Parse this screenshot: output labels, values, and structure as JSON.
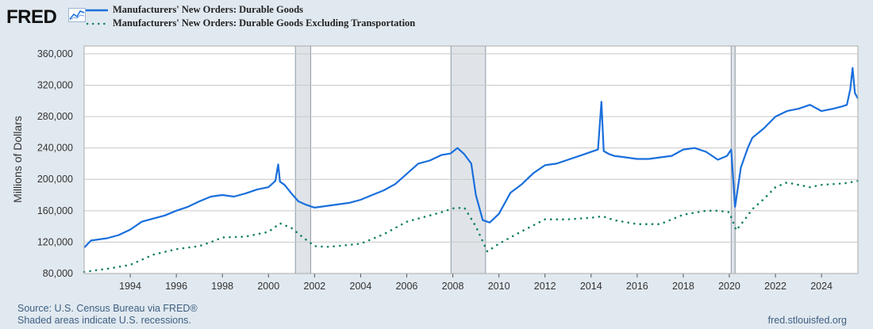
{
  "brand": {
    "logo_text": "FRED",
    "logo_icon": "chart-line-icon"
  },
  "colors": {
    "series1": "#1a6fdc",
    "series2": "#118066",
    "recession": "#e0e4e9",
    "grid": "#c8c8c8"
  },
  "footer": {
    "source": "Source: U.S. Census Bureau via FRED®",
    "note": "Shaded areas indicate U.S. recessions.",
    "url": "fred.stlouisfed.org"
  },
  "chart_data": {
    "type": "line",
    "title": "",
    "xlabel": "",
    "ylabel": "Millions of Dollars",
    "xlim": [
      1992.0,
      2025.58
    ],
    "ylim": [
      80000,
      370000
    ],
    "yticks": [
      80000,
      120000,
      160000,
      200000,
      240000,
      280000,
      320000,
      360000
    ],
    "ytick_labels": [
      "80,000",
      "120,000",
      "160,000",
      "200,000",
      "240,000",
      "280,000",
      "320,000",
      "360,000"
    ],
    "xticks": [
      1994,
      1996,
      1998,
      2000,
      2002,
      2004,
      2006,
      2008,
      2010,
      2012,
      2014,
      2016,
      2018,
      2020,
      2022,
      2024
    ],
    "xtick_labels": [
      "1994",
      "1996",
      "1998",
      "2000",
      "2002",
      "2004",
      "2006",
      "2008",
      "2010",
      "2012",
      "2014",
      "2016",
      "2018",
      "2020",
      "2022",
      "2024"
    ],
    "grid": true,
    "recessions": [
      [
        2001.17,
        2001.83
      ],
      [
        2007.92,
        2009.42
      ],
      [
        2020.08,
        2020.25
      ]
    ],
    "series": [
      {
        "name": "Manufacturers' New Orders: Durable Goods",
        "style": "solid",
        "x": [
          1992.0,
          1992.3,
          1993.0,
          1993.5,
          1994.0,
          1994.5,
          1995.0,
          1995.5,
          1996.0,
          1996.5,
          1997.0,
          1997.5,
          1998.0,
          1998.5,
          1999.0,
          1999.5,
          2000.0,
          2000.3,
          2000.42,
          2000.5,
          2000.7,
          2001.0,
          2001.3,
          2001.6,
          2002.0,
          2002.5,
          2003.0,
          2003.5,
          2004.0,
          2004.5,
          2005.0,
          2005.5,
          2006.0,
          2006.5,
          2007.0,
          2007.5,
          2007.9,
          2008.2,
          2008.5,
          2008.8,
          2009.0,
          2009.3,
          2009.6,
          2010.0,
          2010.5,
          2011.0,
          2011.5,
          2012.0,
          2012.5,
          2013.0,
          2013.5,
          2014.0,
          2014.3,
          2014.45,
          2014.55,
          2014.8,
          2015.0,
          2015.5,
          2016.0,
          2016.5,
          2017.0,
          2017.5,
          2018.0,
          2018.5,
          2019.0,
          2019.5,
          2019.9,
          2020.08,
          2020.25,
          2020.5,
          2020.8,
          2021.0,
          2021.5,
          2022.0,
          2022.5,
          2023.0,
          2023.5,
          2024.0,
          2024.5,
          2024.9,
          2025.1,
          2025.25,
          2025.35,
          2025.45,
          2025.58
        ],
        "values": [
          113000,
          122000,
          125000,
          129000,
          136000,
          146000,
          150000,
          154000,
          160000,
          165000,
          172000,
          178000,
          180000,
          178000,
          182000,
          187000,
          190000,
          198000,
          219000,
          197000,
          193000,
          182000,
          172000,
          168000,
          164000,
          166000,
          168000,
          170000,
          174000,
          180000,
          186000,
          194000,
          207000,
          220000,
          224000,
          231000,
          233000,
          240000,
          232000,
          220000,
          180000,
          148000,
          145000,
          156000,
          183000,
          194000,
          208000,
          218000,
          220000,
          225000,
          230000,
          235000,
          238000,
          299000,
          236000,
          232000,
          230000,
          228000,
          226000,
          226000,
          228000,
          230000,
          238000,
          240000,
          235000,
          225000,
          230000,
          238000,
          165000,
          215000,
          240000,
          253000,
          265000,
          280000,
          287000,
          290000,
          295000,
          287000,
          290000,
          293000,
          295000,
          315000,
          342000,
          310000,
          303000
        ]
      },
      {
        "name": "Manufacturers' New Orders: Durable Goods Excluding Transportation",
        "style": "dotted",
        "x": [
          1992.0,
          1992.5,
          1993.0,
          1994.0,
          1995.0,
          1996.0,
          1997.0,
          1997.5,
          1998.0,
          1999.0,
          2000.0,
          2000.5,
          2001.0,
          2001.5,
          2002.0,
          2002.5,
          2003.0,
          2004.0,
          2005.0,
          2006.0,
          2007.0,
          2007.5,
          2008.0,
          2008.5,
          2009.0,
          2009.5,
          2010.0,
          2011.0,
          2012.0,
          2013.0,
          2014.0,
          2014.5,
          2015.0,
          2016.0,
          2017.0,
          2018.0,
          2019.0,
          2019.5,
          2020.0,
          2020.3,
          2020.7,
          2021.0,
          2021.5,
          2022.0,
          2022.5,
          2023.0,
          2023.5,
          2024.0,
          2024.5,
          2025.0,
          2025.58
        ],
        "values": [
          82000,
          84000,
          86000,
          91000,
          104000,
          111000,
          115000,
          120000,
          126000,
          127000,
          133000,
          144000,
          138000,
          126000,
          115000,
          114000,
          115000,
          118000,
          130000,
          146000,
          154000,
          158000,
          163000,
          164000,
          140000,
          108000,
          118000,
          134000,
          149000,
          149000,
          151000,
          153000,
          148000,
          143000,
          143000,
          155000,
          160000,
          160000,
          158000,
          135000,
          150000,
          162000,
          175000,
          190000,
          196000,
          193000,
          190000,
          193000,
          194000,
          195000,
          198000
        ]
      }
    ]
  }
}
